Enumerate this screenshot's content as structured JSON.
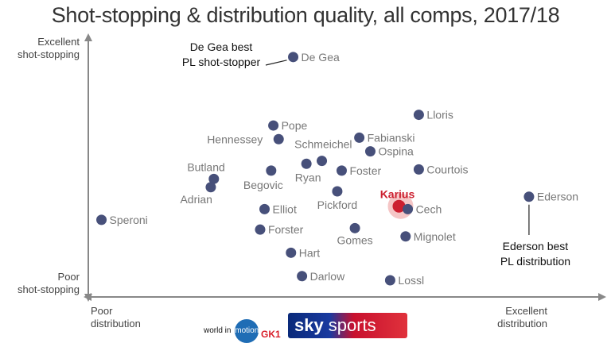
{
  "chart_data": {
    "type": "scatter",
    "title": "Shot-stopping & distribution quality, all comps, 2017/18",
    "x_axis": {
      "low_label": [
        "Poor",
        "distribution"
      ],
      "high_label": [
        "Excellent",
        "distribution"
      ]
    },
    "y_axis": {
      "low_label": [
        "Poor",
        "shot-stopping"
      ],
      "high_label": [
        "Excellent",
        "shot-stopping"
      ]
    },
    "xlim": [
      0,
      100
    ],
    "ylim": [
      0,
      100
    ],
    "points": [
      {
        "name": "De Gea",
        "x": 44.5,
        "y": 95.5
      },
      {
        "name": "Lloris",
        "x": 73.0,
        "y": 71.8
      },
      {
        "name": "Pope",
        "x": 40.0,
        "y": 67.4
      },
      {
        "name": "Fabianski",
        "x": 59.5,
        "y": 62.4
      },
      {
        "name": "Hennessey",
        "x": 41.2,
        "y": 61.8
      },
      {
        "name": "Schmeichel",
        "x": 51.0,
        "y": 52.9
      },
      {
        "name": "Ospina",
        "x": 62.0,
        "y": 56.8
      },
      {
        "name": "Ryan",
        "x": 47.5,
        "y": 51.7
      },
      {
        "name": "Foster",
        "x": 55.5,
        "y": 48.9
      },
      {
        "name": "Courtois",
        "x": 73.0,
        "y": 49.4
      },
      {
        "name": "Begovic",
        "x": 39.5,
        "y": 48.9
      },
      {
        "name": "Butland",
        "x": 26.5,
        "y": 45.5
      },
      {
        "name": "Adrian",
        "x": 25.8,
        "y": 42.1
      },
      {
        "name": "Ederson",
        "x": 98.0,
        "y": 38.2
      },
      {
        "name": "Pickford",
        "x": 54.5,
        "y": 40.4
      },
      {
        "name": "Karius",
        "x": 68.5,
        "y": 34.3,
        "highlight": true
      },
      {
        "name": "Cech",
        "x": 70.5,
        "y": 33.1
      },
      {
        "name": "Elliot",
        "x": 38.0,
        "y": 33.1
      },
      {
        "name": "Speroni",
        "x": 1.0,
        "y": 28.7
      },
      {
        "name": "Forster",
        "x": 37.0,
        "y": 24.7
      },
      {
        "name": "Gomes",
        "x": 58.5,
        "y": 25.3
      },
      {
        "name": "Mignolet",
        "x": 70.0,
        "y": 21.9
      },
      {
        "name": "Hart",
        "x": 44.0,
        "y": 15.2
      },
      {
        "name": "Darlow",
        "x": 46.5,
        "y": 5.6
      },
      {
        "name": "Lossl",
        "x": 66.5,
        "y": 3.9
      }
    ],
    "annotations": [
      {
        "target": "De Gea",
        "text": [
          "De Gea best",
          "PL shot-stopper"
        ]
      },
      {
        "target": "Ederson",
        "text": [
          "Ederson best",
          "PL distribution"
        ]
      }
    ],
    "grid": false,
    "colors": {
      "point": "#47507a",
      "highlight": "#cc1f2f",
      "highlight_halo": "#f2b3b3",
      "axis": "#888888",
      "label": "#777777"
    }
  },
  "footer": {
    "world_in_motion": "world in",
    "world_in_motion_badge": "motion",
    "gk1": "GK1",
    "sky_word": "sky",
    "sports_word": "sports"
  }
}
